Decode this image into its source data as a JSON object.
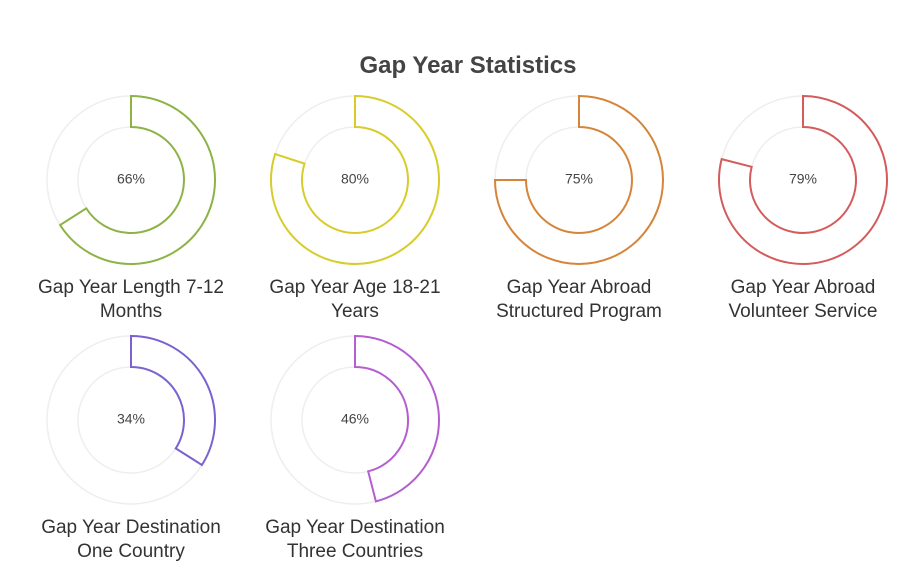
{
  "chart_data": {
    "type": "donut",
    "title": "Gap Year Statistics",
    "categories": [
      "Gap Year Length 7-12 Months",
      "Gap Year Age 18-21 Years",
      "Gap Year Abroad Structured Program",
      "Gap Year Abroad Volunteer Service",
      "Gap Year Destination One Country",
      "Gap Year Destination Three Countries"
    ],
    "values": [
      66,
      80,
      75,
      79,
      34,
      46
    ],
    "value_labels": [
      "66%",
      "80%",
      "75%",
      "79%",
      "34%",
      "46%"
    ],
    "colors": [
      "#8db346",
      "#d8cc2a",
      "#d5853a",
      "#d45b5b",
      "#7a62d1",
      "#b35fd1"
    ]
  }
}
